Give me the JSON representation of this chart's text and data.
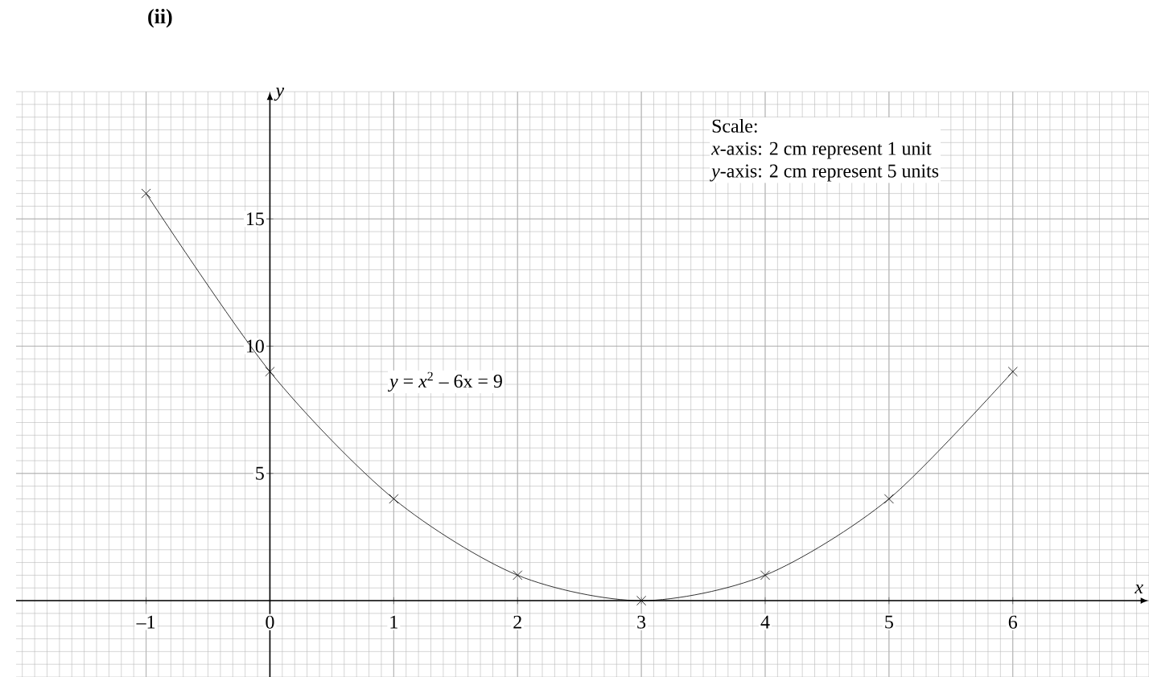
{
  "chart_data": {
    "type": "line",
    "title": "(ii)",
    "xlabel": "x",
    "ylabel": "y",
    "x": [
      -1,
      0,
      1,
      2,
      3,
      4,
      5,
      6
    ],
    "values": [
      16,
      9,
      4,
      1,
      0,
      1,
      4,
      9
    ],
    "color": "#000000",
    "marker": "cross",
    "line_style": "solid",
    "grid": true,
    "xlim": [
      -2.05,
      7.1
    ],
    "ylim": [
      -3,
      20
    ],
    "xticks": [
      {
        "value": -1,
        "label": "–1"
      },
      0,
      1,
      2,
      3,
      4,
      5,
      6
    ],
    "yticks": [
      5,
      10,
      15
    ],
    "annotations": [
      "Scale:",
      "*x*-axis: 2 cm represent 1 unit",
      "*y*-axis: 2 cm represent 5 units",
      "*y* = *x*$^{2}$ – 6x = 9"
    ]
  }
}
